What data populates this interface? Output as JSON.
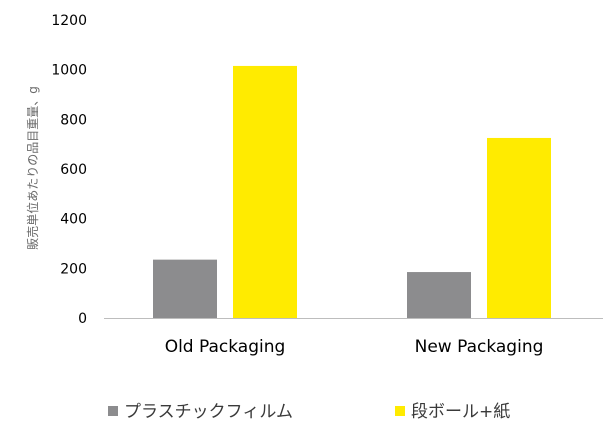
{
  "chart_data": {
    "type": "bar",
    "title": "",
    "xlabel": "",
    "ylabel": "販売単位あたりの品目重量、g",
    "categories": [
      "Old Packaging",
      "New Packaging"
    ],
    "series": [
      {
        "name": "プラスチックフィルム",
        "values": [
          235,
          185
        ],
        "color": "#8c8c8e"
      },
      {
        "name": "段ボール+紙",
        "values": [
          1015,
          725
        ],
        "color": "#ffeb00"
      }
    ],
    "ylim": [
      0,
      1200
    ],
    "yticks": [
      0,
      200,
      400,
      600,
      800,
      1000,
      1200
    ],
    "grid": false,
    "legend_position": "bottom"
  }
}
